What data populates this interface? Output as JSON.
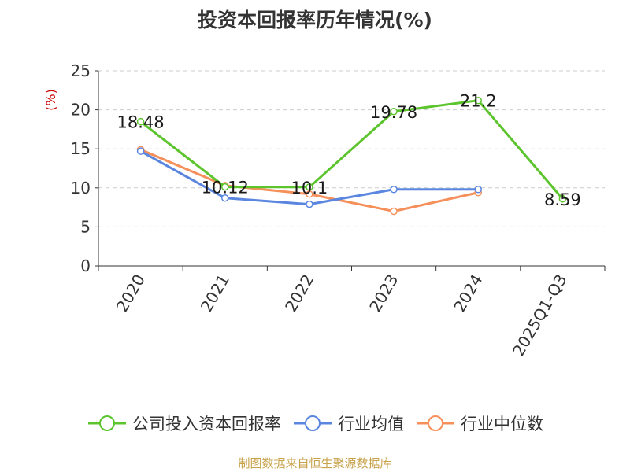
{
  "title": "投资本回报率历年情况(%)",
  "source": "制图数据来自恒生聚源数据库",
  "colors": {
    "company": "#5cc42c",
    "industry_avg": "#5a86e0",
    "industry_median": "#f5905a",
    "ylabel": "#cc0000",
    "source": "#c8a24a"
  },
  "chart_data": {
    "type": "line",
    "title": "投资本回报率历年情况(%)",
    "ylabel": "(%)",
    "xlabel": "",
    "ylim": [
      0,
      25
    ],
    "yticks": [
      0,
      5,
      10,
      15,
      20,
      25
    ],
    "grid": true,
    "legend_position": "bottom",
    "categories": [
      "2020",
      "2021",
      "2022",
      "2023",
      "2024",
      "2025Q1-Q3"
    ],
    "series": [
      {
        "key": "company",
        "name": "公司投入资本回报率",
        "values": [
          18.48,
          10.12,
          10.1,
          19.78,
          21.2,
          8.59
        ],
        "labels": true
      },
      {
        "key": "industry_avg",
        "name": "行业均值",
        "values": [
          14.7,
          8.7,
          7.9,
          9.8,
          9.8,
          null
        ],
        "labels": false
      },
      {
        "key": "industry_median",
        "name": "行业中位数",
        "values": [
          14.9,
          10.3,
          9.2,
          7.0,
          9.4,
          null
        ],
        "labels": false
      }
    ]
  }
}
